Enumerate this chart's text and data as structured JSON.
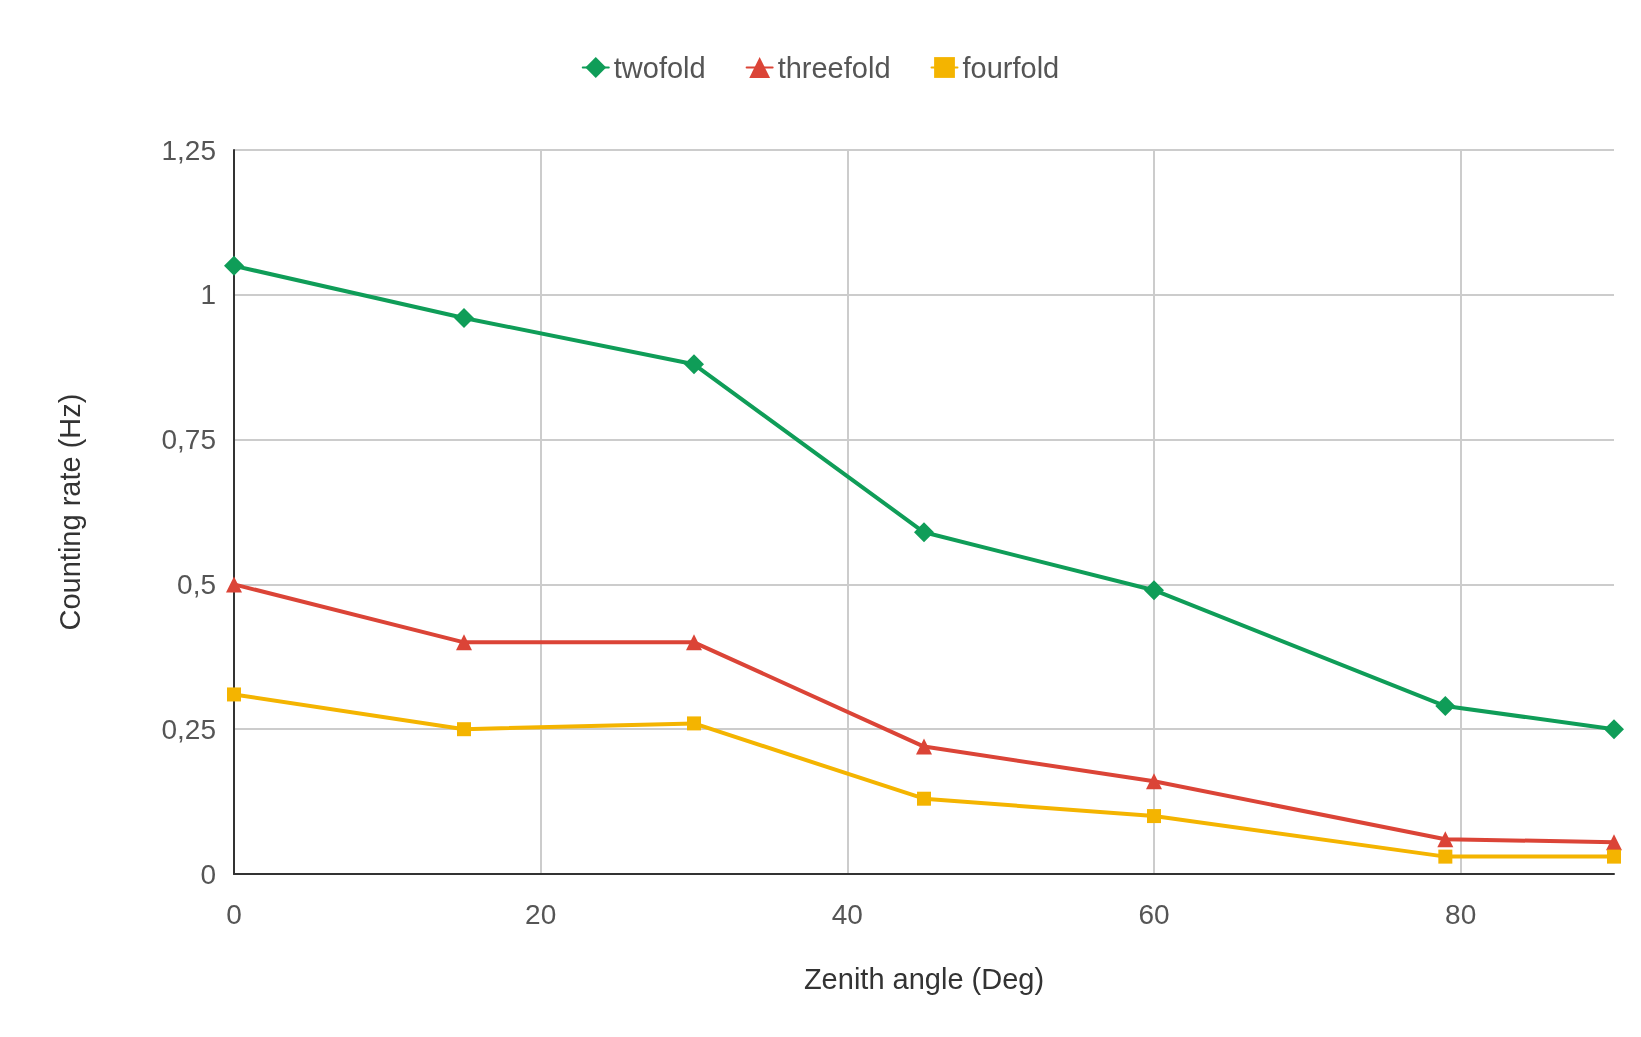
{
  "chart_data": {
    "type": "line",
    "xlabel": "Zenith angle (Deg)",
    "ylabel": "Counting rate (Hz)",
    "x": [
      0,
      15,
      30,
      45,
      60,
      79,
      90
    ],
    "series": [
      {
        "name": "twofold",
        "color": "#0f9d58",
        "marker": "diamond",
        "values": [
          1.05,
          0.96,
          0.88,
          0.59,
          0.49,
          0.29,
          0.25
        ]
      },
      {
        "name": "threefold",
        "color": "#db4437",
        "marker": "triangle",
        "values": [
          0.5,
          0.4,
          0.4,
          0.22,
          0.16,
          0.06,
          0.055
        ]
      },
      {
        "name": "fourfold",
        "color": "#f4b400",
        "marker": "square",
        "values": [
          0.31,
          0.25,
          0.26,
          0.13,
          0.1,
          0.03,
          0.03
        ]
      }
    ],
    "xlim": [
      0,
      90
    ],
    "xticks": [
      0,
      20,
      40,
      60,
      80
    ],
    "ylim": [
      0,
      1.25
    ],
    "yticks": [
      {
        "value": 0,
        "label": "0"
      },
      {
        "value": 0.25,
        "label": "0,25"
      },
      {
        "value": 0.5,
        "label": "0,5"
      },
      {
        "value": 0.75,
        "label": "0,75"
      },
      {
        "value": 1,
        "label": "1"
      },
      {
        "value": 1.25,
        "label": "1,25"
      }
    ],
    "grid": true,
    "legend": "top"
  }
}
